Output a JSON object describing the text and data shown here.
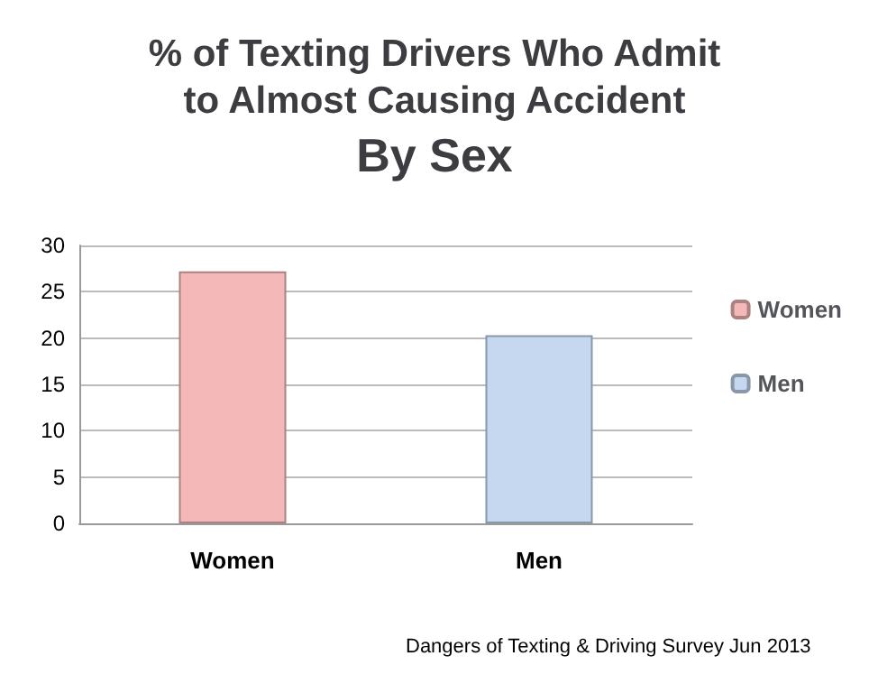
{
  "chart_data": {
    "type": "bar",
    "title": "% of Texting Drivers Who Admit\nto Almost Causing Accident",
    "subtitle": "By Sex",
    "categories": [
      "Women",
      "Men"
    ],
    "series": [
      {
        "name": "Women",
        "color": "#f4b8b8",
        "values": [
          27.2,
          null
        ]
      },
      {
        "name": "Men",
        "color": "#c5d8f0",
        "values": [
          null,
          20.3
        ]
      }
    ],
    "stacked": true,
    "ylim": [
      0,
      30
    ],
    "yticks": [
      0,
      5,
      10,
      15,
      20,
      25,
      30
    ],
    "grid": "y",
    "legend": "right",
    "annotations": [
      "Dangers of Texting & Driving Survey Jun 2013"
    ]
  }
}
